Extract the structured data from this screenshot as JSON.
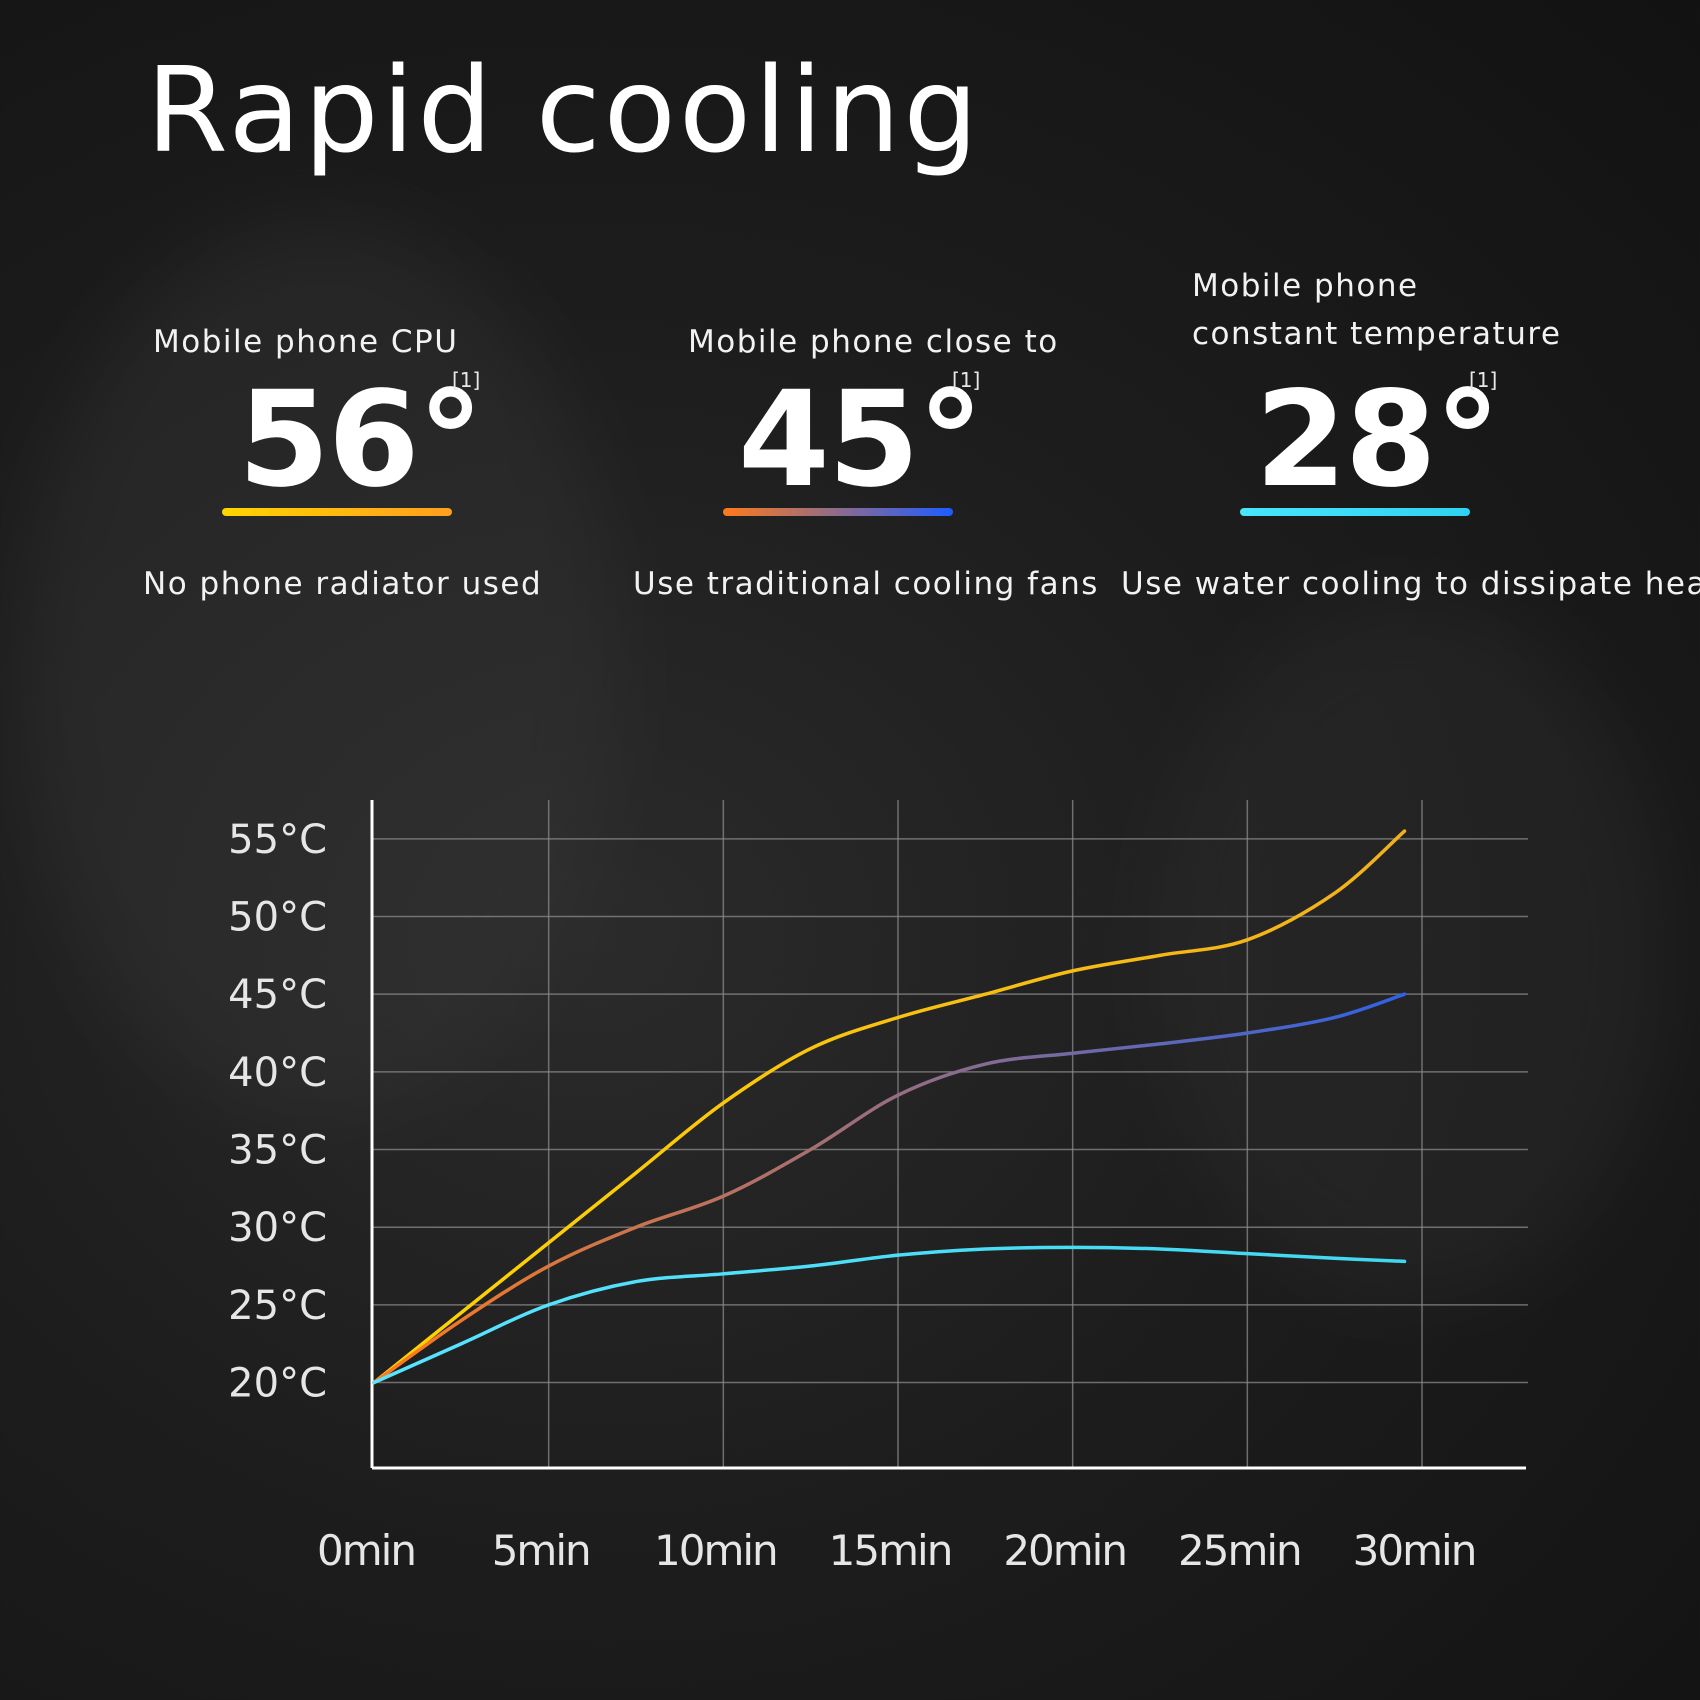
{
  "header": {
    "title": "Rapid cooling"
  },
  "stats": [
    {
      "label_lines": [
        "Mobile phone CPU"
      ],
      "value": "56°",
      "note": "[1]",
      "caption": "No phone radiator used",
      "bar_colors": [
        "#ffd400",
        "#ff9e1f"
      ]
    },
    {
      "label_lines": [
        "Mobile phone close to"
      ],
      "value": "45°",
      "note": "[1]",
      "caption": "Use traditional cooling fans",
      "bar_colors": [
        "#ff7a1a",
        "#1e5cff"
      ]
    },
    {
      "label_lines": [
        "Mobile phone",
        "constant temperature"
      ],
      "value": "28°",
      "note": "[1]",
      "caption": "Use water cooling to dissipate heat",
      "bar_colors": [
        "#48e6ff",
        "#2fd2f0"
      ]
    }
  ],
  "chart_data": {
    "type": "line",
    "title": "",
    "xlabel": "",
    "ylabel": "",
    "x": [
      0,
      2.5,
      5,
      7.5,
      10,
      12.5,
      15,
      17.5,
      20,
      22.5,
      25,
      27.5,
      29.5
    ],
    "x_tick_labels": [
      "0min",
      "5min",
      "10min",
      "15min",
      "20min",
      "25min",
      "30min"
    ],
    "x_ticks": [
      0,
      5,
      10,
      15,
      20,
      25,
      30
    ],
    "y_tick_labels": [
      "55°C",
      "50°C",
      "45°C",
      "40°C",
      "35°C",
      "30°C",
      "25°C",
      "20°C"
    ],
    "y_ticks": [
      55,
      50,
      45,
      40,
      35,
      30,
      25,
      20
    ],
    "xlim": [
      0,
      30
    ],
    "ylim": [
      14.5,
      57.5
    ],
    "grid": true,
    "series": [
      {
        "color": "#f2b01e",
        "color_start": "#ffd400",
        "values": [
          20,
          24.5,
          29,
          33.5,
          38,
          41.5,
          43.5,
          45,
          46.5,
          47.5,
          48.5,
          51.5,
          55.5
        ]
      },
      {
        "color": "#2f62e8",
        "color_start": "#ff7a1a",
        "values": [
          20,
          24,
          27.5,
          30,
          32,
          35,
          38.5,
          40.5,
          41.2,
          41.8,
          42.5,
          43.5,
          45
        ]
      },
      {
        "color": "#40d8f0",
        "color_start": "#58e4ff",
        "values": [
          20,
          22.5,
          25,
          26.5,
          27,
          27.5,
          28.2,
          28.6,
          28.7,
          28.6,
          28.3,
          28,
          27.8
        ]
      }
    ]
  }
}
